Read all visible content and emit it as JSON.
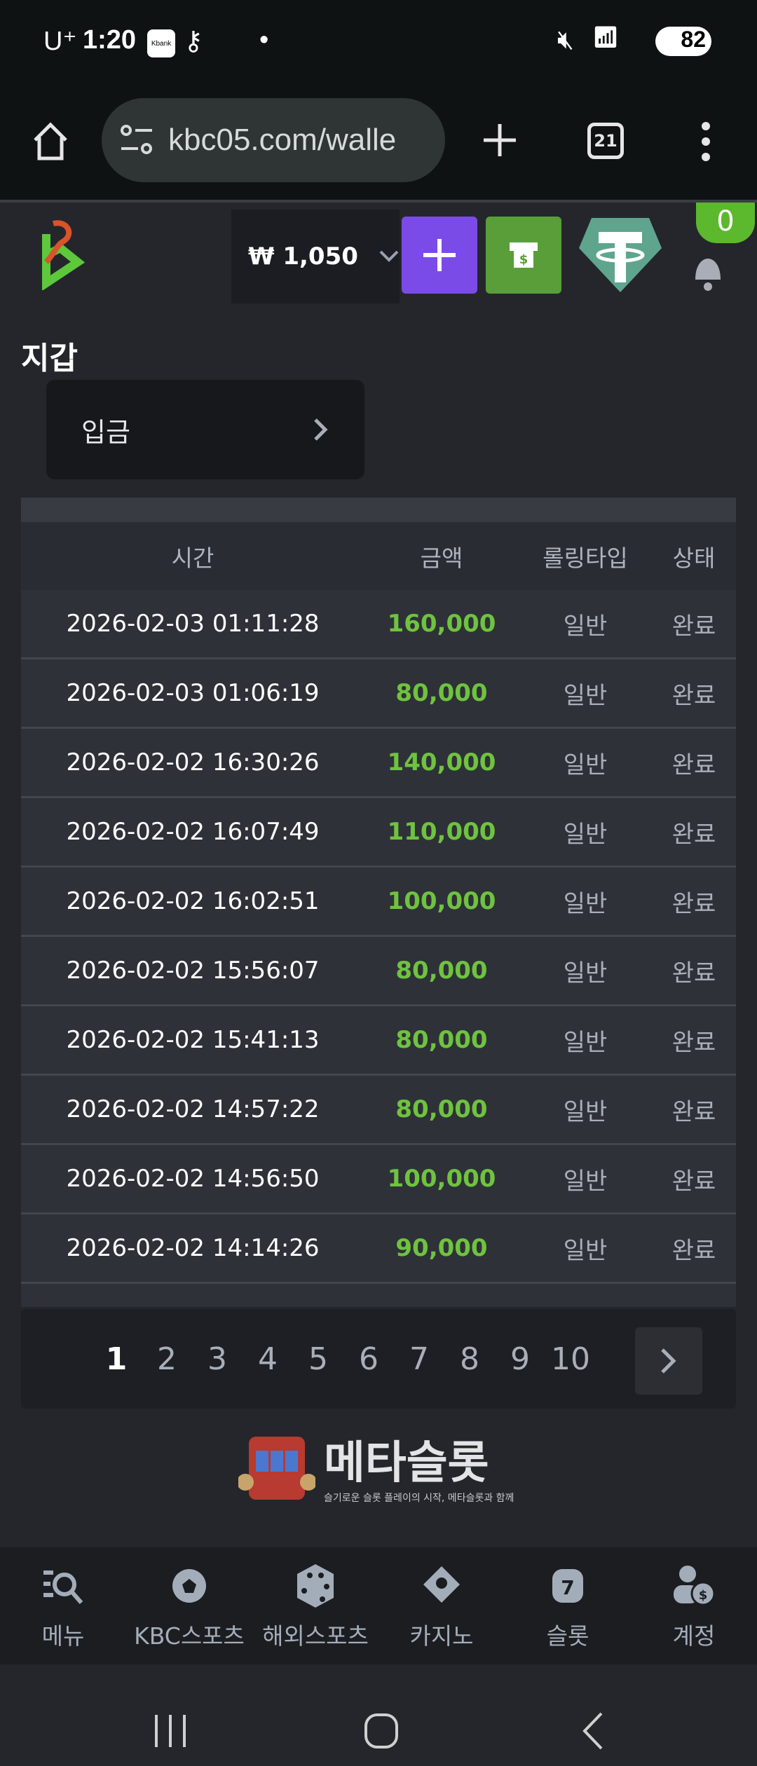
{
  "status_bar": {
    "carrier": "U⁺",
    "time": "1:20",
    "kbank": "Kbank",
    "battery": "82"
  },
  "browser": {
    "url": "kbc05.com/walle",
    "tab_count": "21"
  },
  "header": {
    "balance": "₩ 1,050",
    "notification_count": "0"
  },
  "page": {
    "title": "지갑",
    "deposit_label": "입금"
  },
  "table": {
    "headers": [
      "시간",
      "금액",
      "롤링타입",
      "상태"
    ],
    "rows": [
      [
        "2026-02-03 01:11:28",
        "160,000",
        "일반",
        "완료"
      ],
      [
        "2026-02-03 01:06:19",
        "80,000",
        "일반",
        "완료"
      ],
      [
        "2026-02-02 16:30:26",
        "140,000",
        "일반",
        "완료"
      ],
      [
        "2026-02-02 16:07:49",
        "110,000",
        "일반",
        "완료"
      ],
      [
        "2026-02-02 16:02:51",
        "100,000",
        "일반",
        "완료"
      ],
      [
        "2026-02-02 15:56:07",
        "80,000",
        "일반",
        "완료"
      ],
      [
        "2026-02-02 15:41:13",
        "80,000",
        "일반",
        "완료"
      ],
      [
        "2026-02-02 14:57:22",
        "80,000",
        "일반",
        "완료"
      ],
      [
        "2026-02-02 14:56:50",
        "100,000",
        "일반",
        "완료"
      ],
      [
        "2026-02-02 14:14:26",
        "90,000",
        "일반",
        "완료"
      ]
    ]
  },
  "pagination": {
    "pages": [
      "1",
      "2",
      "3",
      "4",
      "5",
      "6",
      "7",
      "8",
      "9",
      "10"
    ],
    "current": "1"
  },
  "bottom_nav": [
    {
      "label": "메뉴",
      "icon": "menu-search-icon"
    },
    {
      "label": "KBC스포츠",
      "icon": "soccer-ball-icon"
    },
    {
      "label": "해외스포츠",
      "icon": "dice-icon"
    },
    {
      "label": "카지노",
      "icon": "cards-icon"
    },
    {
      "label": "슬롯",
      "icon": "slot-seven-icon"
    },
    {
      "label": "계정",
      "icon": "user-coin-icon"
    }
  ],
  "watermark": {
    "title": "메타슬롯",
    "subtitle": "슬기로운 슬롯 플레이의 시작, 메타슬롯과 함께"
  },
  "colors": {
    "amount": "#6ec33f",
    "plus_button": "#7b4be8",
    "cashier_button": "#5a9e3a",
    "tether": "#5fa58d",
    "badge": "#5cb82c"
  }
}
